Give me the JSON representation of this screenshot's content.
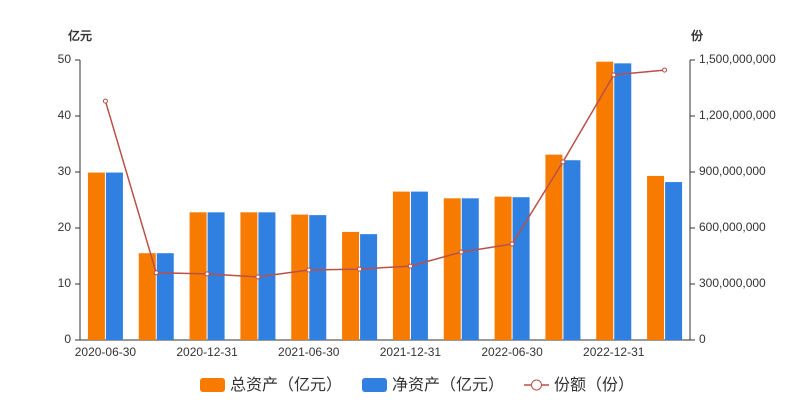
{
  "chart_data": {
    "type": "bar",
    "y_label": "亿元",
    "y2_label": "份",
    "categories": [
      "2020-06-30",
      null,
      "2020-12-31",
      null,
      "2021-06-30",
      null,
      "2021-12-31",
      null,
      "2022-06-30",
      null,
      "2022-12-31",
      null
    ],
    "series": [
      {
        "name": "总资产（亿元）",
        "color": "#f77b00",
        "values": [
          29.9,
          15.5,
          22.8,
          22.8,
          22.4,
          19.3,
          26.5,
          25.3,
          25.6,
          33.1,
          49.7,
          29.3
        ]
      },
      {
        "name": "净资产（亿元）",
        "color": "#2f80e0",
        "values": [
          29.9,
          15.5,
          22.8,
          22.8,
          22.3,
          18.9,
          26.5,
          25.3,
          25.5,
          32.1,
          49.4,
          28.2
        ]
      },
      {
        "name": "份额（份）",
        "color": "#b9504a",
        "type": "line",
        "axis": "y2",
        "values": [
          1280000000,
          360000000,
          354000000,
          338000000,
          375000000,
          380000000,
          396000000,
          471000000,
          514000000,
          954000000,
          1420000000,
          1446000000
        ]
      }
    ],
    "ylim": [
      0,
      50
    ],
    "yticks": [
      0,
      10,
      20,
      30,
      40,
      50
    ],
    "y2lim": [
      0,
      1500000000
    ],
    "y2ticks": [
      0,
      {
        "value": 300000000,
        "label": "300,000,000"
      },
      {
        "value": 600000000,
        "label": "600,000,000"
      },
      {
        "value": 900000000,
        "label": "900,000,000"
      },
      {
        "value": 1200000000,
        "label": "1,200,000,000"
      },
      {
        "value": 1500000000,
        "label": "1,500,000,000"
      }
    ],
    "grid": false,
    "legend": "bottom"
  }
}
